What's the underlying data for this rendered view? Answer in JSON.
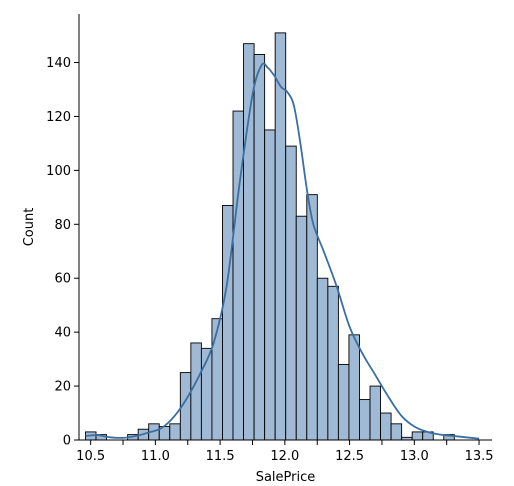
{
  "chart_data": {
    "type": "bar",
    "subtype": "histogram-with-kde",
    "xlabel": "SalePrice",
    "ylabel": "Count",
    "xlim": [
      10.41,
      13.6
    ],
    "ylim": [
      0,
      158
    ],
    "x_ticks": [
      "10.5",
      "10.75",
      "11.0",
      "11.25",
      "11.5",
      "11.75",
      "12.0",
      "12.25",
      "12.5",
      "12.75",
      "13.0",
      "13.25",
      "13.5"
    ],
    "x_tick_labels": [
      "10.5",
      "",
      "11.0",
      "",
      "11.5",
      "",
      "12.0",
      "",
      "12.5",
      "",
      "13.0",
      "",
      "13.5"
    ],
    "y_ticks": [
      0,
      20,
      40,
      60,
      80,
      100,
      120,
      140
    ],
    "y_tick_labels": [
      "0",
      "20",
      "40",
      "60",
      "80",
      "100",
      "120",
      "140"
    ],
    "bin_start": 10.46,
    "bin_width": 0.0814,
    "counts": [
      3,
      2,
      0,
      0,
      2,
      4,
      6,
      5,
      6,
      25,
      36,
      34,
      45,
      87,
      122,
      147,
      143,
      115,
      151,
      109,
      83,
      91,
      60,
      57,
      28,
      39,
      15,
      20,
      10,
      6,
      1,
      3,
      3,
      0,
      2
    ],
    "kde": {
      "x": [
        10.46,
        10.55,
        10.65,
        10.75,
        10.85,
        10.95,
        11.05,
        11.15,
        11.25,
        11.35,
        11.45,
        11.55,
        11.65,
        11.75,
        11.82,
        11.87,
        11.92,
        11.97,
        12.02,
        12.07,
        12.12,
        12.17,
        12.22,
        12.3,
        12.4,
        12.5,
        12.6,
        12.7,
        12.8,
        12.9,
        13.0,
        13.1,
        13.2,
        13.3,
        13.4,
        13.5
      ],
      "y": [
        1.5,
        1.8,
        1.0,
        0.8,
        1.5,
        2.8,
        4.5,
        9.0,
        16,
        25,
        36,
        57,
        95,
        128,
        139,
        138,
        135,
        131,
        129,
        124,
        110,
        93,
        80,
        70,
        57,
        42,
        32,
        24,
        16,
        9,
        5,
        3,
        2,
        1.5,
        1.0,
        0.5
      ]
    }
  }
}
